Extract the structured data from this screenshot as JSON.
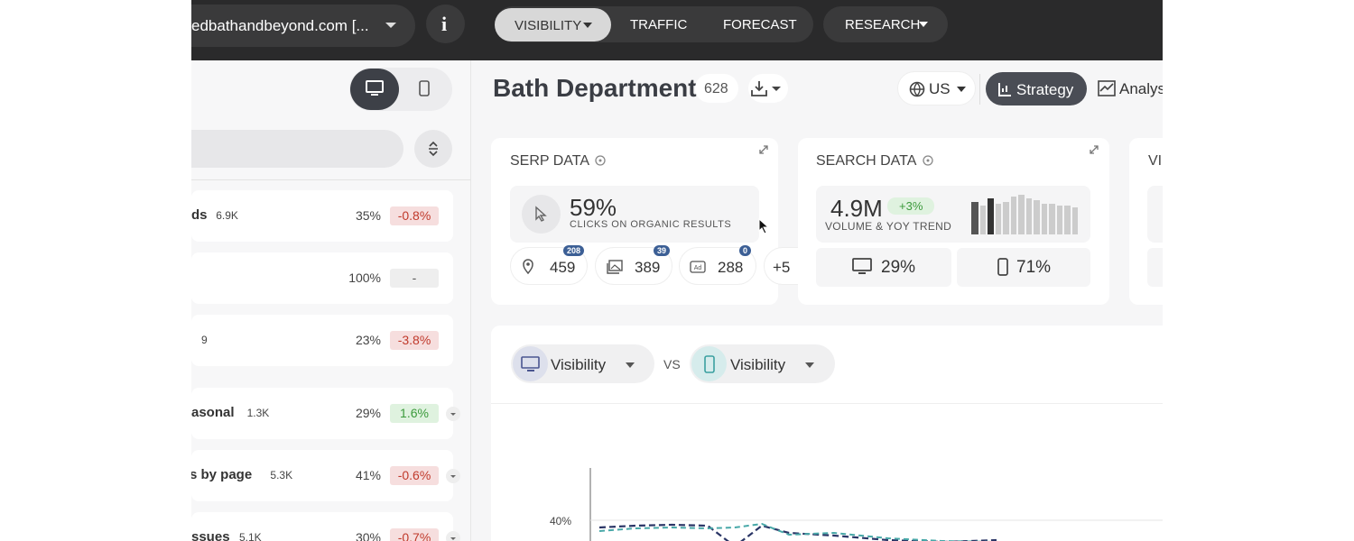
{
  "topbar": {
    "site": "edbathandbeyond.com [...",
    "tabs": [
      "VISIBILITY",
      "TRAFFIC",
      "FORECAST",
      "RESEARCH"
    ]
  },
  "header": {
    "title": "Bath Department",
    "count": "628",
    "country": "US",
    "views": [
      "Strategy",
      "Analys"
    ]
  },
  "sidebar": {
    "rows": [
      {
        "label": "ds",
        "count": "6.9K",
        "share": "35%",
        "change": "-0.8%"
      },
      {
        "share": "100%",
        "change": "-"
      },
      {
        "count": "9",
        "share": "23%",
        "change": "-3.8%"
      },
      {
        "label": "asonal",
        "count": "1.3K",
        "share": "29%",
        "change": "1.6%"
      },
      {
        "label": "s by page",
        "count": "5.3K",
        "share": "41%",
        "change": "-0.6%"
      },
      {
        "label": "ssues",
        "count": "5.1K",
        "share": "30%",
        "change": "-0.7%"
      }
    ]
  },
  "serp": {
    "title": "SERP DATA",
    "clicks": "59%",
    "clicks_label": "CLICKS ON ORGANIC RESULTS",
    "features": [
      {
        "value": "459",
        "badge": "208"
      },
      {
        "value": "389",
        "badge": "39"
      },
      {
        "value": "288",
        "badge": "0"
      }
    ],
    "more": "+5"
  },
  "search": {
    "title": "SEARCH DATA",
    "volume": "4.9M",
    "trend": "+3%",
    "volume_label": "VOLUME & YOY TREND",
    "desktop": "29%",
    "mobile": "71%"
  },
  "third_card_title": "VI",
  "comparison": {
    "left": "Visibility",
    "vs": "VS",
    "right": "Visibility",
    "y_tick": "40%"
  }
}
